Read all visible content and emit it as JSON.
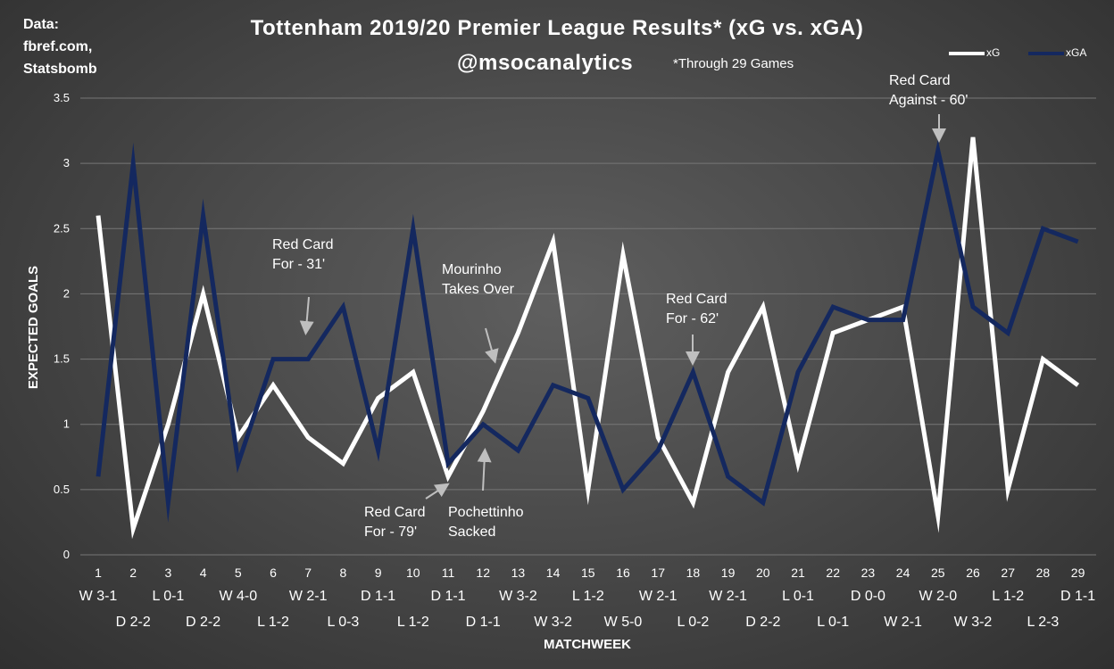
{
  "source": [
    "Data:",
    "fbref.com,",
    "Statsbomb"
  ],
  "subtitle": "@msocanalytics",
  "note": "*Through 29 Games",
  "annotations": [
    {
      "text": "Red Card\nFor - 31'"
    },
    {
      "text": "Mourinho\nTakes Over"
    },
    {
      "text": "Red Card\nFor - 62'"
    },
    {
      "text": "Red Card\nAgainst - 60'"
    },
    {
      "text": "Red Card\nFor - 79'"
    },
    {
      "text": "Pochettinho\nSacked"
    }
  ],
  "chart_data": {
    "type": "line",
    "title": "Tottenham 2019/20 Premier League Results* (xG vs. xGA)",
    "xlabel": "MATCHWEEK",
    "ylabel": "EXPECTED GOALS",
    "ylim": [
      0,
      3.5
    ],
    "yticks": [
      0,
      0.5,
      1,
      1.5,
      2,
      2.5,
      3,
      3.5
    ],
    "grid": true,
    "legend": "top-right",
    "categories": [
      "1",
      "2",
      "3",
      "4",
      "5",
      "6",
      "7",
      "8",
      "9",
      "10",
      "11",
      "12",
      "13",
      "14",
      "15",
      "16",
      "17",
      "18",
      "19",
      "20",
      "21",
      "22",
      "23",
      "24",
      "25",
      "26",
      "27",
      "28",
      "29"
    ],
    "results": [
      "W 3-1",
      "D 2-2",
      "L 0-1",
      "D 2-2",
      "W 4-0",
      "L 1-2",
      "W 2-1",
      "L 0-3",
      "D 1-1",
      "L 1-2",
      "D 1-1",
      "D 1-1",
      "W 3-2",
      "W 3-2",
      "L 1-2",
      "W 5-0",
      "W 2-1",
      "L 0-2",
      "W 2-1",
      "D 2-2",
      "L 0-1",
      "L 0-1",
      "D 0-0",
      "W 2-1",
      "W 2-0",
      "W 3-2",
      "L 1-2",
      "L 2-3",
      "D 1-1"
    ],
    "series": [
      {
        "name": "xG",
        "color": "#ffffff",
        "values": [
          2.6,
          0.2,
          1.0,
          2.0,
          0.9,
          1.3,
          0.9,
          0.7,
          1.2,
          1.4,
          0.6,
          1.1,
          1.7,
          2.4,
          0.5,
          2.3,
          0.9,
          0.4,
          1.4,
          1.9,
          0.7,
          1.7,
          1.8,
          1.9,
          0.3,
          3.2,
          0.5,
          1.5,
          1.3
        ]
      },
      {
        "name": "xGA",
        "color": "#14285f",
        "values": [
          0.6,
          3.0,
          0.4,
          2.6,
          0.7,
          1.5,
          1.5,
          1.9,
          0.8,
          2.5,
          0.7,
          1.0,
          0.8,
          1.3,
          1.2,
          0.5,
          0.8,
          1.4,
          0.6,
          0.4,
          1.4,
          1.9,
          1.8,
          1.8,
          3.1,
          1.9,
          1.7,
          2.5,
          2.4
        ]
      }
    ]
  }
}
